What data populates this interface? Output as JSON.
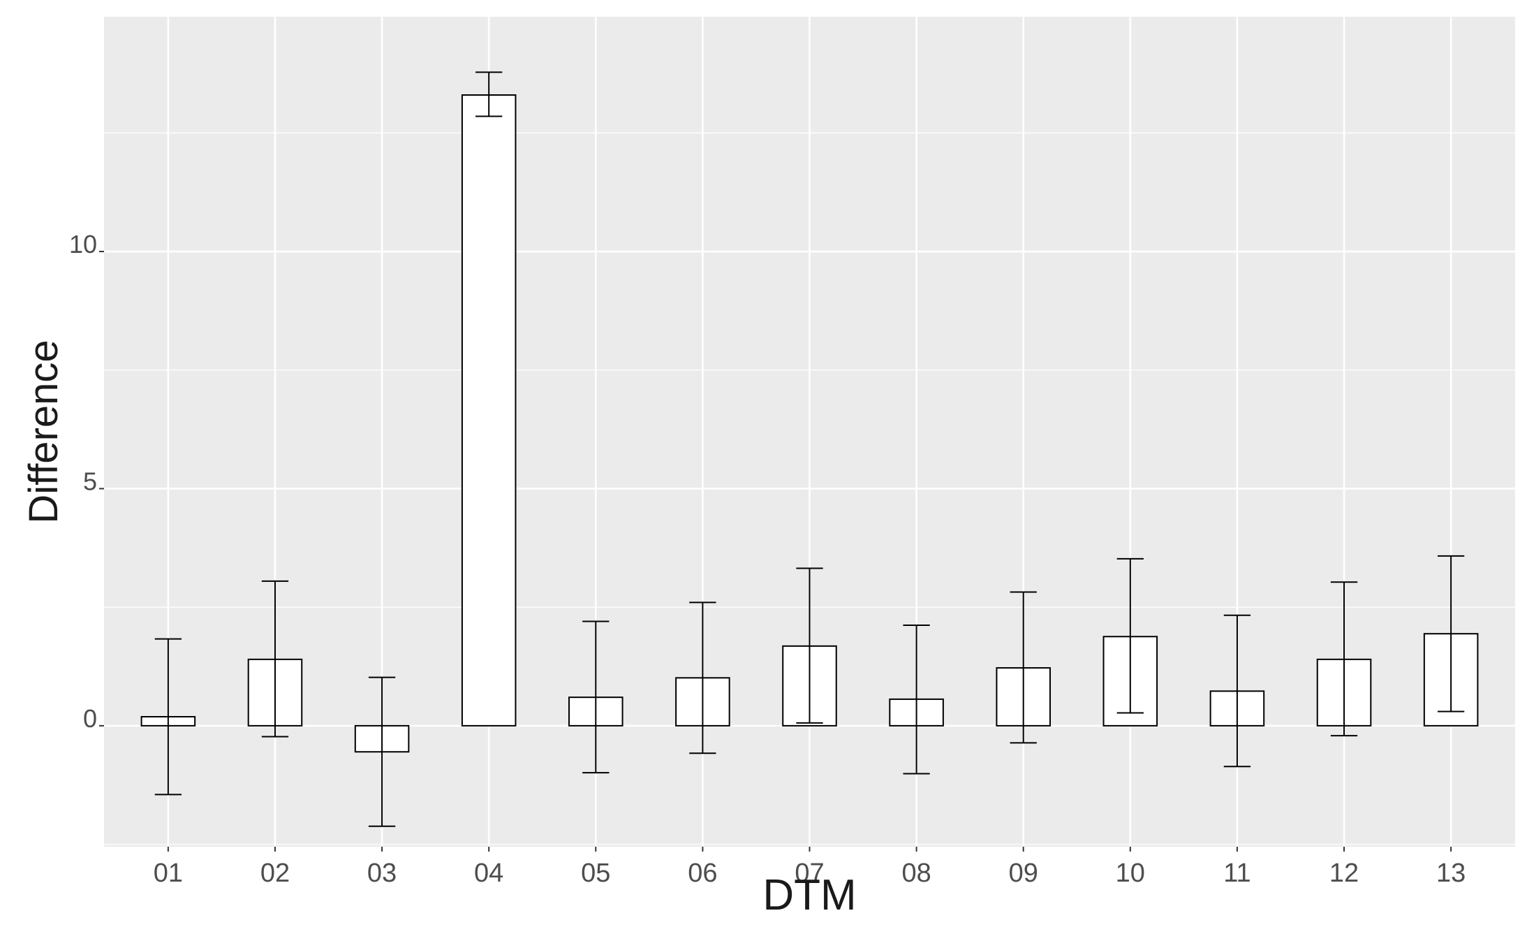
{
  "chart_data": {
    "type": "bar",
    "xlabel": "DTM",
    "ylabel": "Difference",
    "categories": [
      "01",
      "02",
      "03",
      "04",
      "05",
      "06",
      "07",
      "08",
      "09",
      "10",
      "11",
      "12",
      "13"
    ],
    "values": [
      0.19,
      1.4,
      -0.55,
      13.3,
      0.6,
      1.01,
      1.68,
      0.56,
      1.22,
      1.88,
      0.73,
      1.4,
      1.94
    ],
    "error_low": [
      -1.45,
      -0.23,
      -2.12,
      12.85,
      -0.99,
      -0.58,
      0.06,
      -1.01,
      -0.36,
      0.27,
      -0.86,
      -0.21,
      0.3
    ],
    "error_high": [
      1.83,
      3.05,
      1.02,
      13.78,
      2.2,
      2.6,
      3.32,
      2.12,
      2.82,
      3.52,
      2.33,
      3.03,
      3.58
    ],
    "y_ticks": [
      0,
      5,
      10
    ],
    "y_tick_labels": [
      "0",
      "5",
      "10"
    ],
    "ylim": [
      -2.55,
      14.95
    ],
    "grid": true,
    "panel_background": "#ebebeb",
    "grid_color": "#ffffff",
    "bar_fill": "#ffffff",
    "bar_stroke": "#000000"
  }
}
